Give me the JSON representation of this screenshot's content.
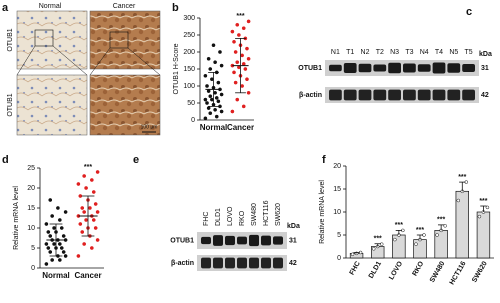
{
  "panels": {
    "a": {
      "label": "a",
      "row_label": "OTUB1",
      "columns": [
        "Normal",
        "Cancer"
      ],
      "scale_bar": "100 μm"
    },
    "c": {
      "label": "c",
      "lanes": [
        "N1",
        "T1",
        "N2",
        "T2",
        "N3",
        "T3",
        "N4",
        "T4",
        "N5",
        "T5"
      ],
      "rows": [
        "OTUB1",
        "β-actin"
      ],
      "unit": "kDa",
      "sizes": [
        "31",
        "42"
      ]
    },
    "e": {
      "label": "e",
      "lanes": [
        "FHC",
        "DLD1",
        "LOVO",
        "RKO",
        "SW480",
        "HCT116",
        "SW620"
      ],
      "rows": [
        "OTUB1",
        "β-actin"
      ],
      "unit": "kDa",
      "sizes": [
        "31",
        "42"
      ]
    }
  },
  "chart_data": [
    {
      "type": "dot",
      "panel_label": "b",
      "ylabel": "OTUB1 H-Score",
      "categories": [
        "Normal",
        "Cancer"
      ],
      "colors": [
        "#111111",
        "#e02020"
      ],
      "values": [
        90,
        160
      ],
      "errors": [
        50,
        80
      ],
      "points": [
        [
          5,
          10,
          20,
          25,
          30,
          35,
          40,
          45,
          50,
          55,
          60,
          60,
          65,
          70,
          75,
          80,
          85,
          90,
          95,
          100,
          110,
          120,
          130,
          140,
          150,
          160,
          170,
          180,
          200,
          220
        ],
        [
          25,
          40,
          60,
          80,
          100,
          110,
          120,
          130,
          140,
          150,
          155,
          160,
          165,
          170,
          180,
          190,
          200,
          210,
          220,
          230,
          240,
          250,
          260,
          270,
          280,
          290
        ]
      ],
      "significance": [
        null,
        "***"
      ],
      "ylim": [
        0,
        300
      ],
      "yticks": [
        0,
        50,
        100,
        150,
        200,
        250,
        300
      ]
    },
    {
      "type": "dot",
      "panel_label": "d",
      "ylabel": "Relative mRNA level",
      "categories": [
        "Normal",
        "Cancer"
      ],
      "colors": [
        "#111111",
        "#e02020"
      ],
      "values": [
        7,
        13
      ],
      "errors": [
        4,
        5
      ],
      "points": [
        [
          1,
          2,
          2,
          3,
          3,
          4,
          4,
          5,
          5,
          5,
          6,
          6,
          6,
          7,
          7,
          7,
          8,
          8,
          9,
          9,
          10,
          10,
          11,
          12,
          13,
          14,
          15,
          17
        ],
        [
          3,
          5,
          6,
          7,
          8,
          9,
          10,
          10,
          11,
          12,
          12,
          13,
          13,
          14,
          14,
          15,
          15,
          16,
          17,
          18,
          19,
          20,
          21,
          22,
          23,
          24
        ]
      ],
      "significance": [
        null,
        "***"
      ],
      "ylim": [
        0,
        25
      ],
      "yticks": [
        0,
        5,
        10,
        15,
        20,
        25
      ]
    },
    {
      "type": "bar",
      "panel_label": "f",
      "ylabel": "Relative mRNA level",
      "categories": [
        "FHC",
        "DLD1",
        "LOVO",
        "RKO",
        "SW480",
        "HCT116",
        "SW620"
      ],
      "color": "#d9d9d9",
      "values": [
        1,
        2.5,
        5,
        4,
        6,
        14.5,
        10
      ],
      "errors": [
        0.2,
        0.6,
        1,
        1,
        1.2,
        2,
        1.3
      ],
      "points": [
        [
          0.8,
          1,
          1.2
        ],
        [
          2,
          2.5,
          3
        ],
        [
          4,
          5,
          6
        ],
        [
          3,
          4,
          5
        ],
        [
          5,
          6,
          7
        ],
        [
          12.5,
          14.5,
          16.5
        ],
        [
          9,
          10,
          11
        ]
      ],
      "significance": [
        null,
        "***",
        "***",
        "***",
        "***",
        "***",
        "***"
      ],
      "ylim": [
        0,
        20
      ],
      "yticks": [
        0,
        5,
        10,
        15,
        20
      ]
    }
  ]
}
